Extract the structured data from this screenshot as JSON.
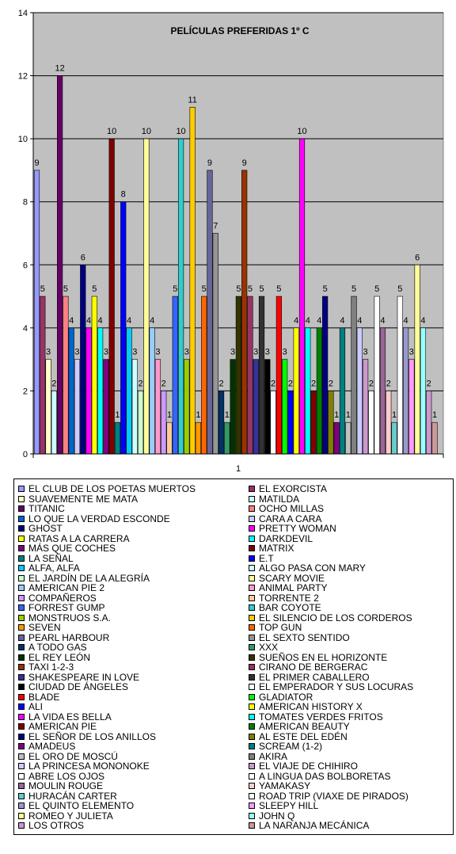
{
  "chart_data": {
    "type": "bar",
    "title": "PELÍCULAS PREFERIDAS 1º C",
    "categories": [
      "1"
    ],
    "ylim": [
      0,
      14
    ],
    "yticks": [
      0,
      2,
      4,
      6,
      8,
      10,
      12,
      14
    ],
    "grid": true,
    "legend_position": "bottom",
    "series": [
      {
        "name": "EL CLUB DE LOS POETAS MUERTOS",
        "values": [
          9
        ],
        "color": "#9999ff"
      },
      {
        "name": "EL EXORCISTA",
        "values": [
          5
        ],
        "color": "#993366"
      },
      {
        "name": "SUAVEMENTE ME MATA",
        "values": [
          3
        ],
        "color": "#ffffcc"
      },
      {
        "name": "MATILDA",
        "values": [
          2
        ],
        "color": "#ccffff"
      },
      {
        "name": "TITANIC",
        "values": [
          12
        ],
        "color": "#660066"
      },
      {
        "name": "OCHO MILLAS",
        "values": [
          5
        ],
        "color": "#ff8080"
      },
      {
        "name": "LO QUE LA VERDAD ESCONDE",
        "values": [
          4
        ],
        "color": "#0066cc"
      },
      {
        "name": "CARA A CARA",
        "values": [
          3
        ],
        "color": "#ccccff"
      },
      {
        "name": "GHOST",
        "values": [
          6
        ],
        "color": "#000080"
      },
      {
        "name": "PRETTY WOMAN",
        "values": [
          4
        ],
        "color": "#ff00ff"
      },
      {
        "name": "RATAS A LA CARRERA",
        "values": [
          5
        ],
        "color": "#ffff00"
      },
      {
        "name": "DARKDEVIL",
        "values": [
          4
        ],
        "color": "#00ffff"
      },
      {
        "name": "MÁS QUE COCHES",
        "values": [
          3
        ],
        "color": "#800080"
      },
      {
        "name": "MATRIX",
        "values": [
          10
        ],
        "color": "#800000"
      },
      {
        "name": "LA SEÑAL",
        "values": [
          1
        ],
        "color": "#008080"
      },
      {
        "name": "E.T",
        "values": [
          8
        ],
        "color": "#0000ff"
      },
      {
        "name": "ALFA, ALFA",
        "values": [
          4
        ],
        "color": "#00ccff"
      },
      {
        "name": "ALGO PASA CON MARY",
        "values": [
          3
        ],
        "color": "#ccffff"
      },
      {
        "name": "EL JARDÍN DE LA ALEGRÍA",
        "values": [
          2
        ],
        "color": "#ccffcc"
      },
      {
        "name": "SCARY MOVIE",
        "values": [
          10
        ],
        "color": "#ffff99"
      },
      {
        "name": "AMERICAN PIE 2",
        "values": [
          4
        ],
        "color": "#99ccff"
      },
      {
        "name": "ANIMAL PARTY",
        "values": [
          3
        ],
        "color": "#ff99cc"
      },
      {
        "name": "COMPAÑEROS",
        "values": [
          2
        ],
        "color": "#cc99ff"
      },
      {
        "name": "TORRENTE 2",
        "values": [
          1
        ],
        "color": "#ffcc99"
      },
      {
        "name": "FORREST GUMP",
        "values": [
          5
        ],
        "color": "#3366ff"
      },
      {
        "name": "BAR COYOTE",
        "values": [
          10
        ],
        "color": "#33cccc"
      },
      {
        "name": "MONSTRUOS S.A.",
        "values": [
          3
        ],
        "color": "#99cc00"
      },
      {
        "name": "EL SILENCIO DE LOS CORDEROS",
        "values": [
          11
        ],
        "color": "#ffcc00"
      },
      {
        "name": "SEVEN",
        "values": [
          1
        ],
        "color": "#ff9900"
      },
      {
        "name": "TOP GUN",
        "values": [
          5
        ],
        "color": "#ff6600"
      },
      {
        "name": "PEARL HARBOUR",
        "values": [
          9
        ],
        "color": "#666699"
      },
      {
        "name": "EL SEXTO SENTIDO",
        "values": [
          7
        ],
        "color": "#969696"
      },
      {
        "name": "A TODO GAS",
        "values": [
          2
        ],
        "color": "#003366"
      },
      {
        "name": "XXX",
        "values": [
          1
        ],
        "color": "#339966"
      },
      {
        "name": "EL REY LEÓN",
        "values": [
          3
        ],
        "color": "#003300"
      },
      {
        "name": "SUEÑOS EN EL HORIZONTE",
        "values": [
          5
        ],
        "color": "#333300"
      },
      {
        "name": "TAXI 1-2-3",
        "values": [
          9
        ],
        "color": "#993300"
      },
      {
        "name": "CIRANO DE BERGERAC",
        "values": [
          5
        ],
        "color": "#993366"
      },
      {
        "name": "SHAKESPEARE IN LOVE",
        "values": [
          3
        ],
        "color": "#333399"
      },
      {
        "name": "EL PRIMER CABALLERO",
        "values": [
          5
        ],
        "color": "#333333"
      },
      {
        "name": "CIUDAD DE ÁNGELES",
        "values": [
          3
        ],
        "color": "#000000"
      },
      {
        "name": "EL EMPERADOR Y SUS LOCURAS",
        "values": [
          2
        ],
        "color": "#ffffff"
      },
      {
        "name": "BLADE",
        "values": [
          5
        ],
        "color": "#ff0000"
      },
      {
        "name": "GLADIATOR",
        "values": [
          3
        ],
        "color": "#00ff00"
      },
      {
        "name": "ALI",
        "values": [
          2
        ],
        "color": "#0000ff"
      },
      {
        "name": "AMERICAN HISTORY X",
        "values": [
          4
        ],
        "color": "#ffff00"
      },
      {
        "name": "LA VIDA ES BELLA",
        "values": [
          10
        ],
        "color": "#ff00ff"
      },
      {
        "name": "TOMATES VERDES FRITOS",
        "values": [
          4
        ],
        "color": "#00ffff"
      },
      {
        "name": "AMERICAN PIE",
        "values": [
          2
        ],
        "color": "#800000"
      },
      {
        "name": "AMERICAN BEAUTY",
        "values": [
          4
        ],
        "color": "#008000"
      },
      {
        "name": "EL SEÑOR DE LOS ANILLOS",
        "values": [
          5
        ],
        "color": "#000080"
      },
      {
        "name": "AL ESTE DEL EDÉN",
        "values": [
          2
        ],
        "color": "#808000"
      },
      {
        "name": "AMADEUS",
        "values": [
          1
        ],
        "color": "#800080"
      },
      {
        "name": "SCREAM (1-2)",
        "values": [
          4
        ],
        "color": "#008080"
      },
      {
        "name": "EL ORO DE MOSCÚ",
        "values": [
          1
        ],
        "color": "#c0c0c0"
      },
      {
        "name": "AKIRA",
        "values": [
          5
        ],
        "color": "#808080"
      },
      {
        "name": "LA PRINCESA MONONOKE",
        "values": [
          4
        ],
        "color": "#ccccff"
      },
      {
        "name": "EL VIAJE DE CHIHIRO",
        "values": [
          3
        ],
        "color": "#cc99cc"
      },
      {
        "name": "ABRE LOS OJOS",
        "values": [
          2
        ],
        "color": "#ffffff"
      },
      {
        "name": "A LINGUA DAS BOLBORETAS",
        "values": [
          5
        ],
        "color": "#ffffff"
      },
      {
        "name": "MOULIN ROUGE",
        "values": [
          4
        ],
        "color": "#996699"
      },
      {
        "name": "YAMAKASY",
        "values": [
          2
        ],
        "color": "#ffcccc"
      },
      {
        "name": "HURACÁN CARTER",
        "values": [
          1
        ],
        "color": "#66cccc"
      },
      {
        "name": "ROAD TRIP (VIAXE DE PIRADOS)",
        "values": [
          5
        ],
        "color": "#ffffff"
      },
      {
        "name": "EL QUINTO ELEMENTO",
        "values": [
          4
        ],
        "color": "#9999cc"
      },
      {
        "name": "SLEEPY HILL",
        "values": [
          3
        ],
        "color": "#ff99ff"
      },
      {
        "name": "ROMEO Y JULIETA",
        "values": [
          6
        ],
        "color": "#ffff99"
      },
      {
        "name": "JOHN Q",
        "values": [
          4
        ],
        "color": "#99ffff"
      },
      {
        "name": "LOS OTROS",
        "values": [
          2
        ],
        "color": "#cc99cc"
      },
      {
        "name": "LA NARANJA MECÁNICA",
        "values": [
          1
        ],
        "color": "#cc9999"
      }
    ]
  }
}
